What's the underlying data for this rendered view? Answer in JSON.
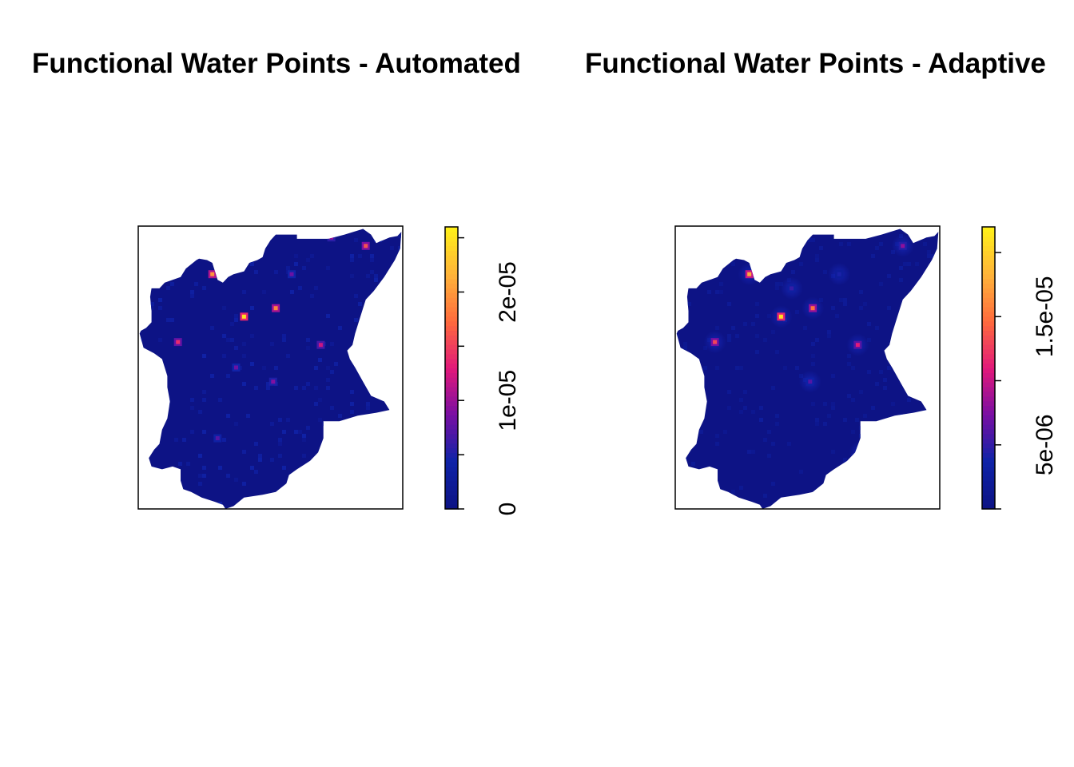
{
  "chart_data": [
    {
      "type": "heatmap",
      "title": "Functional Water Points - Automated",
      "colorbar": {
        "range": [
          0,
          2.6e-05
        ],
        "ticks": [
          0,
          1e-05,
          2e-05
        ],
        "tick_labels": [
          "0",
          "1e-05",
          "2e-05"
        ]
      },
      "colors": [
        "#0d1385",
        "#0f23a8",
        "#7a0fa3",
        "#e2197a",
        "#ff6a3d",
        "#ffb23a",
        "#ffee1a"
      ],
      "grid": false,
      "hotspots": [
        {
          "x": 0.4,
          "y": 0.32,
          "value": 2.5e-05
        },
        {
          "x": 0.28,
          "y": 0.17,
          "value": 2e-05
        },
        {
          "x": 0.52,
          "y": 0.29,
          "value": 1.9e-05
        },
        {
          "x": 0.86,
          "y": 0.07,
          "value": 1.6e-05
        },
        {
          "x": 0.15,
          "y": 0.41,
          "value": 1.4e-05
        },
        {
          "x": 0.69,
          "y": 0.42,
          "value": 1.2e-05
        },
        {
          "x": 0.51,
          "y": 0.55,
          "value": 9e-06
        },
        {
          "x": 0.72,
          "y": 0.82,
          "value": 9e-06
        },
        {
          "x": 0.73,
          "y": 0.04,
          "value": 1e-05
        },
        {
          "x": 0.58,
          "y": 0.17,
          "value": 8e-06
        },
        {
          "x": 0.37,
          "y": 0.5,
          "value": 8e-06
        },
        {
          "x": 0.3,
          "y": 0.75,
          "value": 7e-06
        }
      ]
    },
    {
      "type": "heatmap",
      "title": "Functional Water Points - Adaptive",
      "colorbar": {
        "range": [
          0,
          2.2e-05
        ],
        "ticks": [
          5e-06,
          1.5e-05
        ],
        "tick_labels": [
          "5e-06",
          "1.5e-05"
        ]
      },
      "colors": [
        "#0d1385",
        "#0f23a8",
        "#7a0fa3",
        "#e2197a",
        "#ff6a3d",
        "#ffb23a",
        "#ffee1a"
      ],
      "grid": false,
      "hotspots": [
        {
          "x": 0.4,
          "y": 0.32,
          "value": 2.1e-05
        },
        {
          "x": 0.28,
          "y": 0.17,
          "value": 1.8e-05
        },
        {
          "x": 0.52,
          "y": 0.29,
          "value": 1.5e-05
        },
        {
          "x": 0.15,
          "y": 0.41,
          "value": 1.3e-05
        },
        {
          "x": 0.69,
          "y": 0.42,
          "value": 1.1e-05
        },
        {
          "x": 0.86,
          "y": 0.07,
          "value": 8e-06
        },
        {
          "x": 0.51,
          "y": 0.55,
          "value": 6e-06
        },
        {
          "x": 0.44,
          "y": 0.22,
          "value": 5e-06
        },
        {
          "x": 0.62,
          "y": 0.17,
          "value": 4e-06
        },
        {
          "x": 0.7,
          "y": 0.8,
          "value": 4e-06
        }
      ]
    }
  ]
}
